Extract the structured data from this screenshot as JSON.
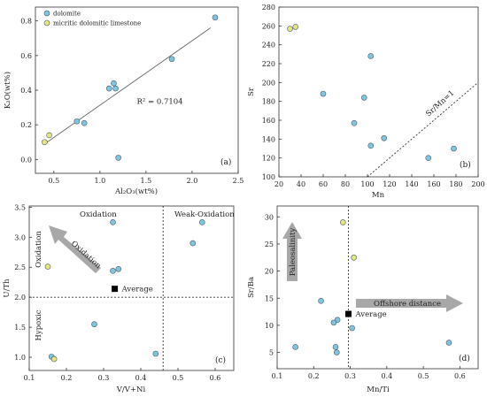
{
  "palette": {
    "dolomite": "#7ec6e0",
    "limestone": "#e6e67a",
    "edge": "#4a5a66",
    "average": "#000000",
    "arrow": "#a8a8a8"
  },
  "chart_data": [
    {
      "id": "a",
      "type": "scatter",
      "panel_label": "(a)",
      "xlabel": "Al₂O₃(wt%)",
      "ylabel": "K₂O(wt%)",
      "xlim": [
        0.3,
        2.5
      ],
      "ylim": [
        -0.08,
        0.88
      ],
      "xticks": [
        0.5,
        1.0,
        1.5,
        2.0,
        2.5
      ],
      "xtick_labels": [
        "0.5",
        "1.0",
        "1.5",
        "2.0",
        "2.5"
      ],
      "yticks": [
        0.0,
        0.2,
        0.4,
        0.6,
        0.8
      ],
      "ytick_labels": [
        "0.0",
        "0.2",
        "0.4",
        "0.6",
        "0.8"
      ],
      "legend": {
        "position": "top-left",
        "entries": [
          "dolomite",
          "micritic dolomitic limestone"
        ]
      },
      "series": [
        {
          "name": "dolomite",
          "points": [
            [
              2.25,
              0.82
            ],
            [
              1.78,
              0.58
            ],
            [
              1.15,
              0.44
            ],
            [
              1.1,
              0.41
            ],
            [
              1.17,
              0.41
            ],
            [
              0.75,
              0.22
            ],
            [
              0.83,
              0.21
            ],
            [
              1.2,
              0.01
            ]
          ]
        },
        {
          "name": "micritic dolomitic limestone",
          "points": [
            [
              0.45,
              0.14
            ],
            [
              0.4,
              0.1
            ]
          ]
        }
      ],
      "trendline": {
        "from": [
          0.4,
          0.09
        ],
        "to": [
          2.2,
          0.76
        ],
        "label": "R² = 0.7104",
        "label_at": [
          1.4,
          0.32
        ]
      }
    },
    {
      "id": "b",
      "type": "scatter",
      "panel_label": "(b)",
      "xlabel": "Mn",
      "ylabel": "Sr",
      "xlim": [
        20,
        200
      ],
      "ylim": [
        100,
        280
      ],
      "xticks": [
        20,
        40,
        60,
        80,
        100,
        120,
        140,
        160,
        180,
        200
      ],
      "xtick_labels": [
        "20",
        "40",
        "60",
        "80",
        "100",
        "120",
        "140",
        "160",
        "180",
        "200"
      ],
      "yticks": [
        100,
        120,
        140,
        160,
        180,
        200,
        220,
        240,
        260,
        280
      ],
      "ytick_labels": [
        "100",
        "120",
        "140",
        "160",
        "180",
        "200",
        "220",
        "240",
        "260",
        "280"
      ],
      "series": [
        {
          "name": "dolomite",
          "points": [
            [
              103,
              228
            ],
            [
              60,
              188
            ],
            [
              97,
              184
            ],
            [
              88,
              157
            ],
            [
              115,
              141
            ],
            [
              103,
              133
            ],
            [
              155,
              120
            ],
            [
              178,
              130
            ]
          ]
        },
        {
          "name": "micritic dolomitic limestone",
          "points": [
            [
              30,
              257
            ],
            [
              35,
              259
            ]
          ]
        }
      ],
      "reference_line": {
        "from": [
          100,
          100
        ],
        "to": [
          200,
          200
        ],
        "label": "Sr/Mn=1"
      }
    },
    {
      "id": "c",
      "type": "scatter",
      "panel_label": "(c)",
      "xlabel": "V/V+Ni",
      "ylabel": "U/Th",
      "xlim": [
        0.1,
        0.65
      ],
      "ylim": [
        0.78,
        3.52
      ],
      "xticks": [
        0.1,
        0.2,
        0.3,
        0.4,
        0.5,
        0.6
      ],
      "xtick_labels": [
        "0.1",
        "0.2",
        "0.3",
        "0.4",
        "0.5",
        "0.6"
      ],
      "yticks": [
        1.0,
        1.5,
        2.0,
        2.5,
        3.0,
        3.5
      ],
      "ytick_labels": [
        "1.0",
        "1.5",
        "2.0",
        "2.5",
        "3.0",
        "3.5"
      ],
      "series": [
        {
          "name": "dolomite",
          "points": [
            [
              0.325,
              3.25
            ],
            [
              0.565,
              3.25
            ],
            [
              0.54,
              2.9
            ],
            [
              0.325,
              2.44
            ],
            [
              0.34,
              2.47
            ],
            [
              0.275,
              1.55
            ],
            [
              0.16,
              1.01
            ],
            [
              0.44,
              1.06
            ]
          ]
        },
        {
          "name": "micritic dolomitic limestone",
          "points": [
            [
              0.15,
              2.51
            ],
            [
              0.167,
              0.97
            ]
          ]
        }
      ],
      "average": {
        "point": [
          0.33,
          2.14
        ],
        "label": "Average"
      },
      "hline": 2.0,
      "vline": 0.46,
      "zones": [
        "Oxidation",
        "Weak-Oxidation",
        "Oxidation",
        "Hypoxic"
      ],
      "arrow_label": "Oxidation"
    },
    {
      "id": "d",
      "type": "scatter",
      "panel_label": "(d)",
      "xlabel": "Mn/Ti",
      "ylabel": "Sr/Ba",
      "xlim": [
        0.1,
        0.65
      ],
      "ylim": [
        2,
        32
      ],
      "xticks": [
        0.1,
        0.2,
        0.3,
        0.4,
        0.5,
        0.6
      ],
      "xtick_labels": [
        "0.1",
        "0.2",
        "0.3",
        "0.4",
        "0.5",
        "0.6"
      ],
      "yticks": [
        5,
        10,
        15,
        20,
        25,
        30
      ],
      "ytick_labels": [
        "5",
        "10",
        "15",
        "20",
        "25",
        "30"
      ],
      "series": [
        {
          "name": "dolomite",
          "points": [
            [
              0.22,
              14.5
            ],
            [
              0.265,
              11
            ],
            [
              0.255,
              10.5
            ],
            [
              0.305,
              9.5
            ],
            [
              0.26,
              6
            ],
            [
              0.263,
              5
            ],
            [
              0.15,
              6
            ],
            [
              0.57,
              6.8
            ]
          ]
        },
        {
          "name": "micritic dolomitic limestone",
          "points": [
            [
              0.28,
              29
            ],
            [
              0.31,
              22.5
            ]
          ]
        }
      ],
      "average": {
        "point": [
          0.295,
          12.1
        ],
        "label": "Average"
      },
      "vline": 0.295,
      "arrows": [
        "Paleosalinity",
        "Offshore distance"
      ]
    }
  ]
}
